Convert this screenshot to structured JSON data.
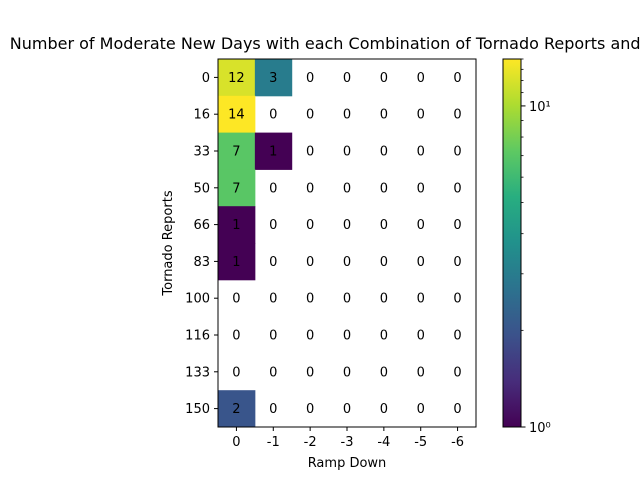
{
  "chart_data": {
    "type": "heatmap",
    "title": "Number of Moderate New Days with each Combination of Tornado Reports and Ra",
    "xlabel": "Ramp Down",
    "ylabel": "Tornado Reports",
    "x_categories": [
      "0",
      "-1",
      "-2",
      "-3",
      "-4",
      "-5",
      "-6"
    ],
    "y_categories": [
      "0",
      "16",
      "33",
      "50",
      "66",
      "83",
      "100",
      "116",
      "133",
      "150"
    ],
    "values": [
      [
        12,
        3,
        0,
        0,
        0,
        0,
        0
      ],
      [
        14,
        0,
        0,
        0,
        0,
        0,
        0
      ],
      [
        7,
        1,
        0,
        0,
        0,
        0,
        0
      ],
      [
        7,
        0,
        0,
        0,
        0,
        0,
        0
      ],
      [
        1,
        0,
        0,
        0,
        0,
        0,
        0
      ],
      [
        1,
        0,
        0,
        0,
        0,
        0,
        0
      ],
      [
        0,
        0,
        0,
        0,
        0,
        0,
        0
      ],
      [
        0,
        0,
        0,
        0,
        0,
        0,
        0
      ],
      [
        0,
        0,
        0,
        0,
        0,
        0,
        0
      ],
      [
        2,
        0,
        0,
        0,
        0,
        0,
        0
      ]
    ],
    "colorbar": {
      "scale": "log",
      "range": [
        1,
        14
      ],
      "tick_labels": [
        "10¹",
        "10⁰"
      ],
      "colormap": "viridis"
    },
    "grid": false
  }
}
